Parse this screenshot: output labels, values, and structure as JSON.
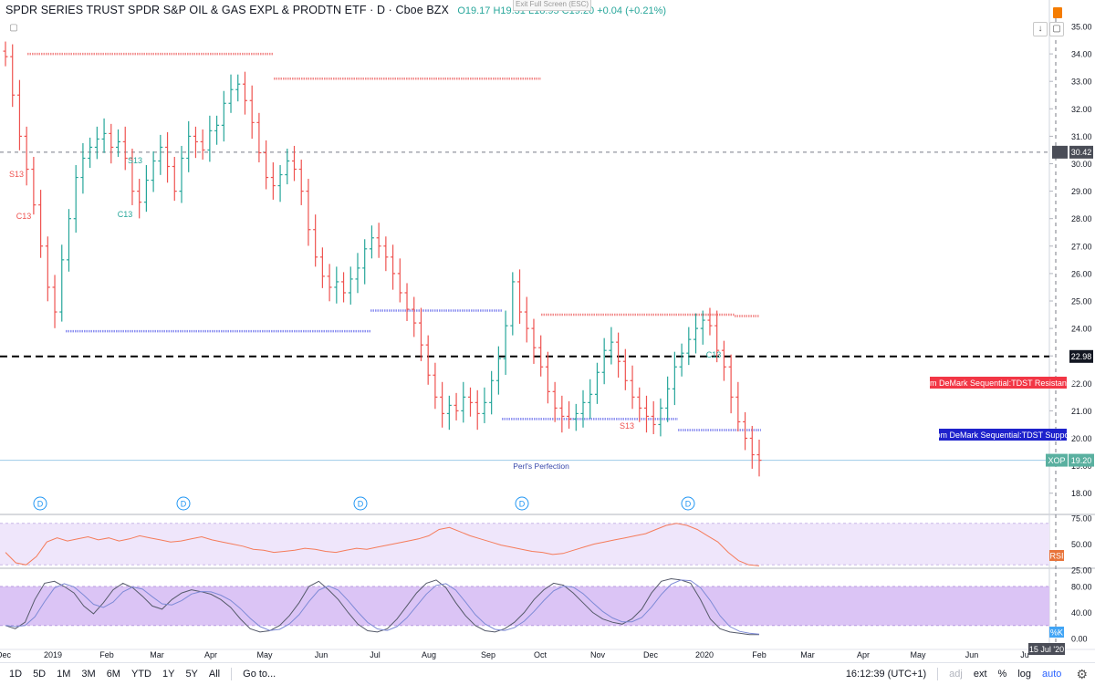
{
  "header": {
    "title": "SPDR SERIES TRUST SPDR S&P OIL & GAS EXPL & PRODTN ETF · D · Cboe BZX",
    "ohlc": "O19.17 H19.31 L18.95 C19.20 +0.04 (+0.21%)",
    "exit_fullscreen": "Exit Full Screen (ESC)"
  },
  "price_axis": {
    "ticks": [
      "35.00",
      "34.00",
      "33.00",
      "32.00",
      "31.00",
      "30.00",
      "29.00",
      "28.00",
      "27.00",
      "26.00",
      "25.00",
      "24.00",
      "23.00",
      "22.00",
      "21.00",
      "20.00",
      "19.00",
      "18.00"
    ],
    "crosshair_label": "30.42",
    "level_label": "22.98",
    "last_price_symbol": "XOP",
    "last_price": "19.20"
  },
  "labels": {
    "resistance": "Tom DeMark Sequential:TDST Resistance",
    "support": "Tom DeMark Sequential:TDST Support",
    "perls": "Perl's Perfection",
    "markers": [
      {
        "text": "S13",
        "color": "#ef5350"
      },
      {
        "text": "C13",
        "color": "#ef5350"
      },
      {
        "text": "S13",
        "color": "#26a69a"
      },
      {
        "text": "C13",
        "color": "#26a69a"
      },
      {
        "text": "S13",
        "color": "#ef5350"
      },
      {
        "text": "C13",
        "color": "#26a69a"
      }
    ],
    "dividend": "D"
  },
  "rsi_panel": {
    "ticks": [
      "75.00",
      "50.00",
      "25.00"
    ],
    "badge": "RSI"
  },
  "stoch_panel": {
    "ticks": [
      "80.00",
      "40.00",
      "0.00"
    ],
    "badge": "%K"
  },
  "time_axis": {
    "ticks": [
      "Dec",
      "2019",
      "Feb",
      "Mar",
      "Apr",
      "May",
      "Jun",
      "Jul",
      "Aug",
      "Sep",
      "Oct",
      "Nov",
      "Dec",
      "2020",
      "Feb",
      "Mar",
      "Apr",
      "May",
      "Jun",
      "Ju"
    ],
    "crosshair_label": "15 Jul '20"
  },
  "bottom_bar": {
    "ranges": [
      "1D",
      "5D",
      "1M",
      "3M",
      "6M",
      "YTD",
      "1Y",
      "5Y",
      "All"
    ],
    "goto": "Go to...",
    "clock": "16:12:39 (UTC+1)",
    "adj": "adj",
    "ext": "ext",
    "pct": "%",
    "log": "log",
    "auto": "auto"
  },
  "colors": {
    "up": "#26a69a",
    "down": "#ef5350",
    "resistance": "#f23645",
    "support": "#1e22cc",
    "rsi_line": "#f57c5b",
    "rsi_band": "#efe6fb",
    "stoch_band": "#dbc4f5",
    "accent": "#2962ff"
  },
  "chart_data": {
    "type": "candlestick",
    "series": [
      {
        "name": "XOP",
        "close": [
          33.9,
          32.5,
          31.0,
          29.8,
          28.5,
          27.0,
          25.5,
          24.6,
          26.5,
          28.0,
          29.5,
          30.2,
          30.6,
          30.9,
          31.1,
          30.6,
          30.8,
          30.2,
          29.0,
          28.6,
          29.4,
          30.1,
          30.6,
          29.9,
          29.0,
          30.2,
          31.0,
          30.8,
          30.5,
          31.2,
          31.4,
          32.2,
          32.7,
          32.9,
          32.3,
          31.5,
          30.4,
          29.5,
          29.2,
          29.6,
          30.1,
          29.8,
          29.0,
          27.6,
          26.6,
          25.9,
          25.5,
          25.7,
          25.3,
          25.8,
          26.2,
          26.9,
          27.3,
          27.0,
          26.6,
          26.0,
          25.3,
          24.7,
          24.2,
          23.4,
          22.3,
          21.5,
          20.9,
          21.2,
          21.0,
          21.5,
          21.3,
          20.9,
          21.3,
          22.1,
          22.9,
          24.1,
          25.7,
          24.6,
          24.0,
          23.3,
          22.6,
          21.7,
          21.1,
          20.8,
          20.7,
          20.9,
          21.3,
          21.6,
          22.4,
          23.2,
          23.5,
          22.8,
          22.1,
          21.5,
          21.1,
          20.8,
          20.5,
          21.1,
          21.8,
          22.6,
          23.1,
          23.6,
          24.0,
          24.3,
          24.1,
          23.2,
          22.6,
          21.5,
          20.6,
          20.0,
          19.4,
          19.2
        ]
      },
      {
        "name": "RSI",
        "values": [
          42,
          32,
          30,
          38,
          52,
          56,
          53,
          55,
          57,
          54,
          56,
          53,
          55,
          58,
          56,
          54,
          52,
          53,
          55,
          57,
          54,
          52,
          50,
          48,
          45,
          44,
          42,
          43,
          44,
          46,
          45,
          43,
          42,
          44,
          46,
          45,
          47,
          49,
          51,
          53,
          55,
          58,
          64,
          66,
          62,
          58,
          55,
          52,
          49,
          47,
          45,
          43,
          42,
          40,
          41,
          44,
          47,
          50,
          52,
          54,
          56,
          58,
          60,
          64,
          68,
          70,
          68,
          64,
          58,
          52,
          42,
          34,
          30,
          29
        ]
      },
      {
        "name": "%K",
        "values": [
          20,
          15,
          25,
          60,
          85,
          88,
          80,
          70,
          50,
          38,
          55,
          75,
          85,
          78,
          65,
          50,
          45,
          60,
          70,
          75,
          72,
          68,
          60,
          48,
          30,
          15,
          10,
          12,
          20,
          35,
          55,
          80,
          88,
          75,
          60,
          40,
          22,
          12,
          10,
          15,
          30,
          50,
          70,
          85,
          90,
          78,
          55,
          35,
          20,
          12,
          10,
          15,
          25,
          40,
          60,
          75,
          85,
          82,
          70,
          55,
          40,
          30,
          25,
          22,
          30,
          45,
          70,
          88,
          92,
          90,
          85,
          60,
          30,
          15,
          10,
          8,
          6,
          6
        ]
      }
    ]
  }
}
